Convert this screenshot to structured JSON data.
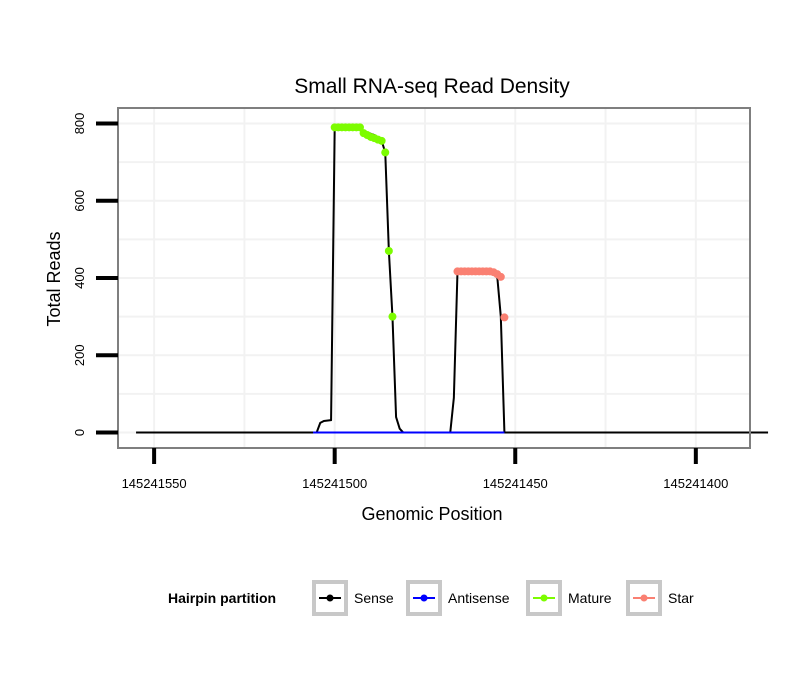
{
  "chart_data": {
    "type": "line",
    "title": "Small RNA-seq Read Density",
    "xlabel": "Genomic Position",
    "ylabel": "Total Reads",
    "x_reversed": true,
    "xlim": [
      145241560,
      145241385
    ],
    "ylim": [
      -40,
      840
    ],
    "x_ticks": [
      145241550,
      145241500,
      145241450,
      145241400
    ],
    "x_tick_labels": [
      "145241550",
      "145241500",
      "145241450",
      "145241400"
    ],
    "y_ticks": [
      0,
      200,
      400,
      600,
      800
    ],
    "y_tick_labels": [
      "0",
      "200",
      "400",
      "600",
      "800"
    ],
    "grid": true,
    "legend": {
      "title": "Hairpin partition",
      "position": "bottom",
      "entries": [
        {
          "label": "Sense",
          "color": "#000000"
        },
        {
          "label": "Antisense",
          "color": "#0000ff"
        },
        {
          "label": "Mature",
          "color": "#7cfc00"
        },
        {
          "label": "Star",
          "color": "#fa8072"
        }
      ]
    },
    "series": [
      {
        "name": "Sense",
        "color": "#000000",
        "kind": "line",
        "points": [
          [
            145241555,
            0
          ],
          [
            145241505,
            0
          ],
          [
            145241504,
            25
          ],
          [
            145241503,
            30
          ],
          [
            145241501,
            32
          ],
          [
            145241500,
            790
          ],
          [
            145241493,
            790
          ],
          [
            145241492,
            780
          ],
          [
            145241489,
            770
          ],
          [
            145241487,
            755
          ],
          [
            145241486,
            725
          ],
          [
            145241485,
            470
          ],
          [
            145241484,
            300
          ],
          [
            145241483,
            40
          ],
          [
            145241482,
            10
          ],
          [
            145241481,
            0
          ],
          [
            145241468,
            0
          ],
          [
            145241467,
            90
          ],
          [
            145241466,
            415
          ],
          [
            145241456,
            415
          ],
          [
            145241455,
            405
          ],
          [
            145241454,
            300
          ],
          [
            145241453,
            0
          ],
          [
            145241380,
            0
          ]
        ]
      },
      {
        "name": "Antisense",
        "color": "#0000ff",
        "kind": "line",
        "points": [
          [
            145241506,
            0
          ],
          [
            145241453,
            0
          ]
        ]
      },
      {
        "name": "Mature",
        "color": "#7cfc00",
        "kind": "points",
        "points": [
          [
            145241500,
            790
          ],
          [
            145241499,
            790
          ],
          [
            145241498,
            790
          ],
          [
            145241497,
            790
          ],
          [
            145241496,
            790
          ],
          [
            145241495,
            790
          ],
          [
            145241494,
            790
          ],
          [
            145241493,
            790
          ],
          [
            145241492,
            775
          ],
          [
            145241491,
            770
          ],
          [
            145241490,
            765
          ],
          [
            145241489,
            762
          ],
          [
            145241488,
            758
          ],
          [
            145241487,
            755
          ],
          [
            145241486,
            725
          ],
          [
            145241485,
            470
          ],
          [
            145241484,
            300
          ]
        ]
      },
      {
        "name": "Star",
        "color": "#fa8072",
        "kind": "points",
        "points": [
          [
            145241466,
            417
          ],
          [
            145241465,
            417
          ],
          [
            145241464,
            417
          ],
          [
            145241463,
            417
          ],
          [
            145241462,
            417
          ],
          [
            145241461,
            417
          ],
          [
            145241460,
            417
          ],
          [
            145241459,
            417
          ],
          [
            145241458,
            417
          ],
          [
            145241457,
            417
          ],
          [
            145241456,
            415
          ],
          [
            145241455,
            410
          ],
          [
            145241454,
            403
          ],
          [
            145241453,
            298
          ]
        ]
      }
    ]
  }
}
